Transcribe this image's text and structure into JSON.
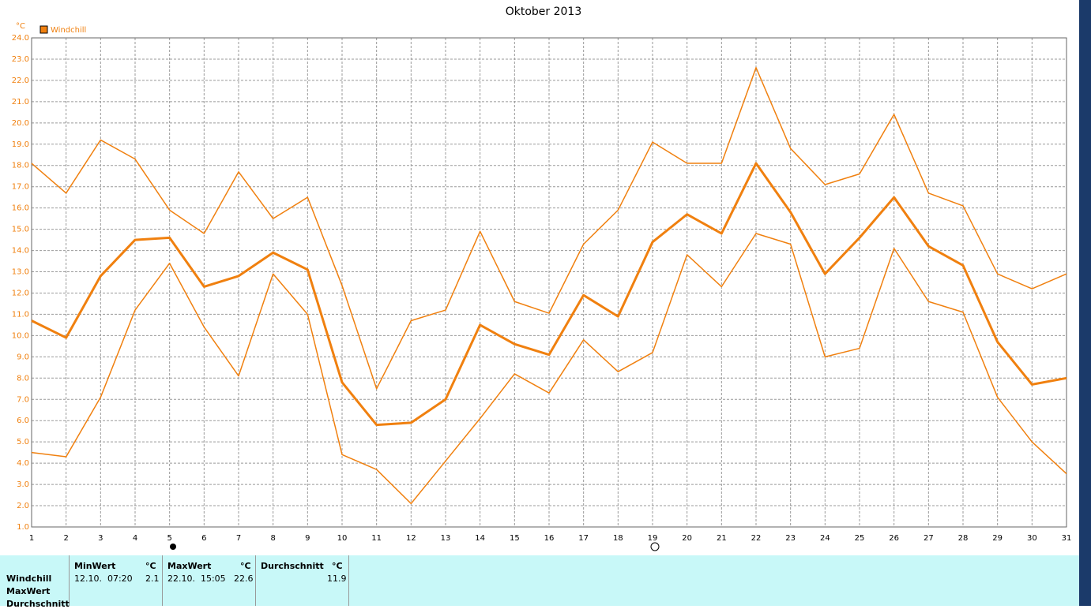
{
  "chart_data": {
    "type": "line",
    "title": "Oktober 2013",
    "y_label": "°C",
    "legend": "Windchill",
    "grid": true,
    "x": [
      1,
      2,
      3,
      4,
      5,
      6,
      7,
      8,
      9,
      10,
      11,
      12,
      13,
      14,
      15,
      16,
      17,
      18,
      19,
      20,
      21,
      22,
      23,
      24,
      25,
      26,
      27,
      28,
      29,
      30,
      31
    ],
    "xlim": [
      1,
      31
    ],
    "xticks": [
      1,
      2,
      3,
      4,
      5,
      6,
      7,
      8,
      9,
      10,
      11,
      12,
      13,
      14,
      15,
      16,
      17,
      18,
      19,
      20,
      21,
      22,
      23,
      24,
      25,
      26,
      27,
      28,
      29,
      30,
      31
    ],
    "ylim": [
      1,
      24
    ],
    "yticks": [
      {
        "value": 1,
        "label": "1.0"
      },
      {
        "value": 2,
        "label": "2.0"
      },
      {
        "value": 3,
        "label": "3.0"
      },
      {
        "value": 4,
        "label": "4.0"
      },
      {
        "value": 5,
        "label": "5.0"
      },
      {
        "value": 6,
        "label": "6.0"
      },
      {
        "value": 7,
        "label": "7.0"
      },
      {
        "value": 8,
        "label": "8.0"
      },
      {
        "value": 9,
        "label": "9.0"
      },
      {
        "value": 10,
        "label": "10.0"
      },
      {
        "value": 11,
        "label": "11.0"
      },
      {
        "value": 12,
        "label": "12.0"
      },
      {
        "value": 13,
        "label": "13.0"
      },
      {
        "value": 14,
        "label": "14.0"
      },
      {
        "value": 15,
        "label": "15.0"
      },
      {
        "value": 16,
        "label": "16.0"
      },
      {
        "value": 17,
        "label": "17.0"
      },
      {
        "value": 18,
        "label": "18.0"
      },
      {
        "value": 19,
        "label": "19.0"
      },
      {
        "value": 20,
        "label": "20.0"
      },
      {
        "value": 21,
        "label": "21.0"
      },
      {
        "value": 22,
        "label": "22.0"
      },
      {
        "value": 23,
        "label": "23.0"
      },
      {
        "value": 24,
        "label": "24.0"
      }
    ],
    "series": [
      {
        "color": "#f0800f",
        "width": 1.5,
        "values": [
          18.1,
          16.7,
          19.2,
          18.3,
          15.9,
          14.8,
          17.7,
          15.5,
          16.5,
          12.35,
          7.5,
          10.7,
          11.2,
          14.9,
          11.6,
          11.05,
          14.3,
          15.9,
          19.1,
          18.1,
          18.1,
          22.6,
          18.8,
          17.1,
          17.6,
          20.4,
          16.7,
          16.1,
          12.9,
          12.2,
          12.9
        ]
      },
      {
        "color": "#f0800f",
        "width": 3,
        "values": [
          10.7,
          9.9,
          12.8,
          14.5,
          14.6,
          12.3,
          12.8,
          13.9,
          13.1,
          7.8,
          5.8,
          5.9,
          7.0,
          10.5,
          9.6,
          9.1,
          11.9,
          10.9,
          14.4,
          15.7,
          14.8,
          18.1,
          15.8,
          12.9,
          14.6,
          16.5,
          14.2,
          13.3,
          9.7,
          7.7,
          8.0
        ]
      },
      {
        "color": "#f0800f",
        "width": 1.5,
        "values": [
          4.5,
          4.3,
          7.1,
          11.2,
          13.4,
          10.4,
          8.1,
          12.9,
          11.0,
          4.4,
          3.7,
          2.1,
          4.1,
          6.1,
          8.2,
          7.3,
          9.8,
          8.3,
          9.2,
          13.8,
          12.3,
          14.8,
          14.3,
          9.0,
          9.4,
          14.1,
          11.6,
          11.1,
          7.1,
          5.0,
          3.5
        ]
      }
    ]
  },
  "table": {
    "rows": [
      "Windchill",
      "MaxWert",
      "Durchschnitt"
    ],
    "columns": [
      {
        "header": "MinWert",
        "unit": "°C",
        "time": "12.10.  07:20",
        "value": "2.1"
      },
      {
        "header": "MaxWert",
        "unit": "°C",
        "time": "22.10.  15:05",
        "value": "22.6"
      },
      {
        "header": "Durchschnitt",
        "unit": "°C",
        "value": "11.9"
      }
    ]
  }
}
